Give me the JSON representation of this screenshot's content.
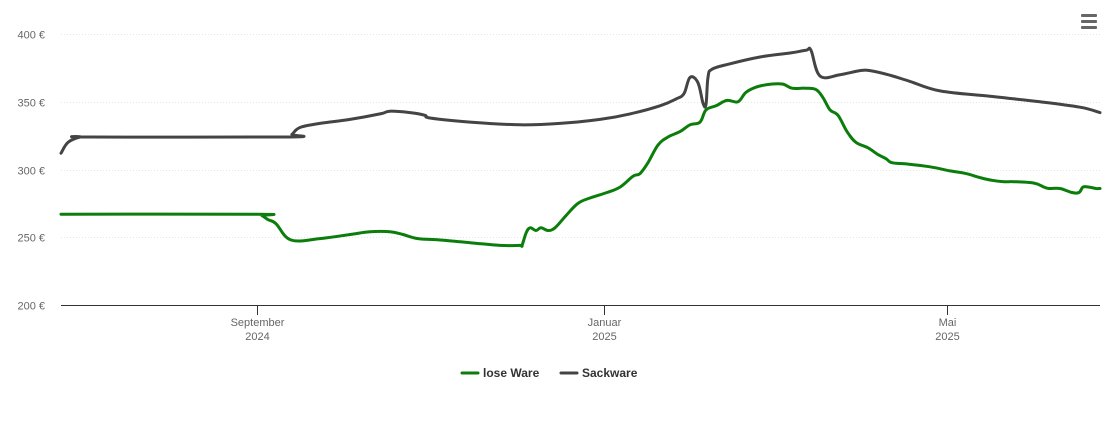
{
  "toolbar": {
    "menu_icon": "hamburger-menu-icon"
  },
  "chart_data": {
    "type": "line",
    "title": "",
    "xlabel": "",
    "ylabel": "",
    "ylim": [
      200,
      400
    ],
    "y_ticks": [
      {
        "value": 200,
        "label": "200 €"
      },
      {
        "value": 250,
        "label": "250 €"
      },
      {
        "value": 300,
        "label": "300 €"
      },
      {
        "value": 350,
        "label": "350 €"
      },
      {
        "value": 400,
        "label": "400 €"
      }
    ],
    "xlim": [
      "2024-06-03",
      "2025-06-30"
    ],
    "x_ticks": [
      {
        "date": "2024-09-01",
        "label": "September",
        "sublabel": "2024"
      },
      {
        "date": "2025-01-01",
        "label": "Januar",
        "sublabel": "2025"
      },
      {
        "date": "2025-05-01",
        "label": "Mai",
        "sublabel": "2025"
      }
    ],
    "grid": true,
    "legend_position": "bottom-center",
    "series": [
      {
        "name": "lose Ware",
        "color": "#0a7d0a",
        "points": [
          [
            "2024-06-03",
            267
          ],
          [
            "2024-08-20",
            267
          ],
          [
            "2024-09-05",
            267
          ],
          [
            "2024-09-12",
            264
          ],
          [
            "2024-09-18",
            260
          ],
          [
            "2024-09-22",
            248
          ],
          [
            "2024-10-01",
            249
          ],
          [
            "2024-10-20",
            253
          ],
          [
            "2024-11-01",
            254
          ],
          [
            "2024-11-15",
            252
          ],
          [
            "2024-12-01",
            248
          ],
          [
            "2024-12-15",
            248
          ],
          [
            "2024-12-28",
            245
          ],
          [
            "2024-11-20",
            248
          ],
          [
            "2024-12-01",
            248
          ]
        ]
      },
      {
        "name": "Sackware",
        "color": "#444444",
        "points": [
          [
            "2024-06-03",
            312
          ],
          [
            "2024-06-15",
            324
          ],
          [
            "2024-09-05",
            324
          ]
        ]
      }
    ]
  }
}
